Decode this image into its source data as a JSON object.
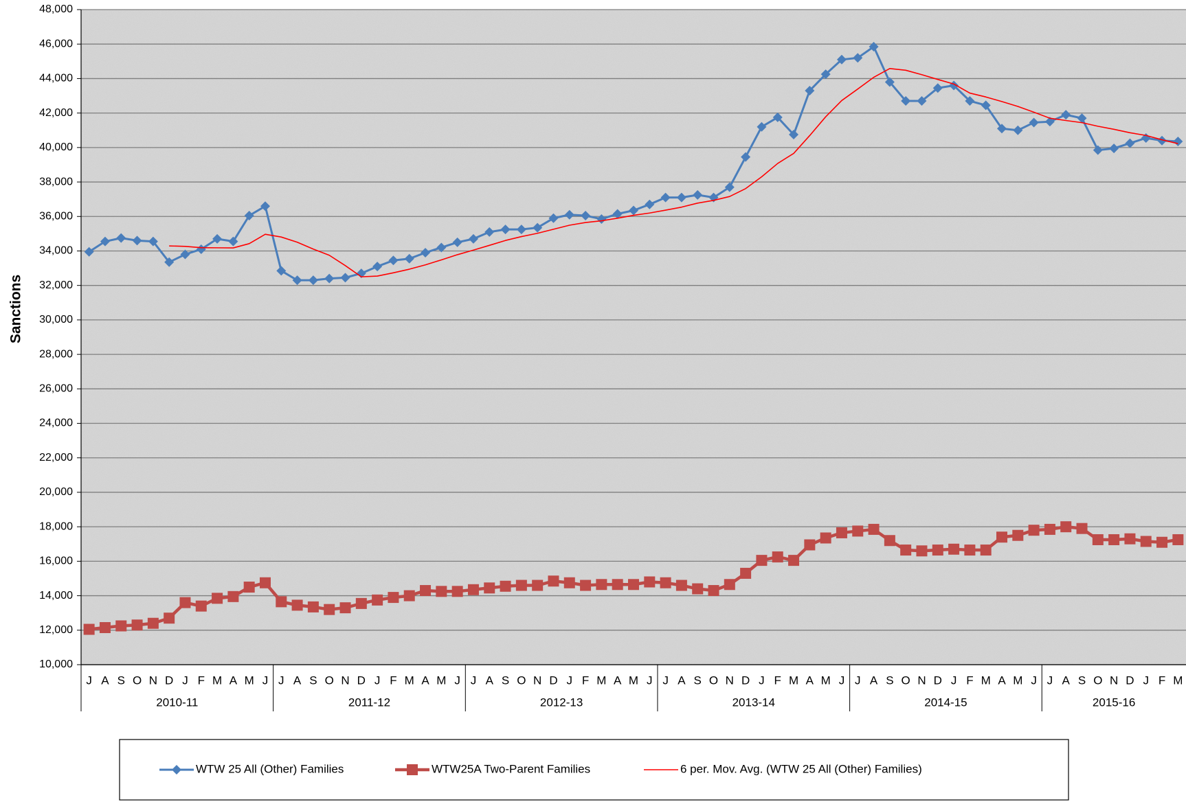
{
  "chart_data": {
    "type": "line",
    "y_label": "Sanctions",
    "categories": [
      "J",
      "A",
      "S",
      "O",
      "N",
      "D",
      "J",
      "F",
      "M",
      "A",
      "M",
      "J",
      "J",
      "A",
      "S",
      "O",
      "N",
      "D",
      "J",
      "F",
      "M",
      "A",
      "M",
      "J",
      "J",
      "A",
      "S",
      "O",
      "N",
      "D",
      "J",
      "F",
      "M",
      "A",
      "M",
      "J",
      "J",
      "A",
      "S",
      "O",
      "N",
      "D",
      "J",
      "F",
      "M",
      "A",
      "M",
      "J",
      "J",
      "A",
      "S",
      "O",
      "N",
      "D",
      "J",
      "F",
      "M",
      "A",
      "M",
      "J",
      "J",
      "A",
      "S",
      "O",
      "N",
      "D",
      "J",
      "F",
      "M"
    ],
    "groups": [
      "2010-11",
      "2011-12",
      "2012-13",
      "2013-14",
      "2014-15",
      "2015-16"
    ],
    "series": [
      {
        "name": "WTW 25 All (Other) Families",
        "color": "#4a7ebb",
        "marker": "diamond",
        "values": [
          33950,
          34550,
          34750,
          34600,
          34550,
          33350,
          33800,
          34100,
          34700,
          34550,
          36050,
          36600,
          32850,
          32300,
          32300,
          32400,
          32450,
          32700,
          33100,
          33450,
          33550,
          33900,
          34200,
          34500,
          34700,
          35100,
          35250,
          35250,
          35350,
          35900,
          36100,
          36050,
          35850,
          36150,
          36350,
          36700,
          37100,
          37100,
          37250,
          37100,
          37700,
          39450,
          41200,
          41750,
          40750,
          43300,
          44250,
          45100,
          45200,
          45850,
          43800,
          42700,
          42700,
          43450,
          43600,
          42700,
          42450,
          41100,
          41000,
          41450,
          41500,
          41900,
          41700,
          39850,
          39950,
          40250,
          40550,
          40400,
          40350
        ]
      },
      {
        "name": "WTW25A Two-Parent Families",
        "color": "#be4b48",
        "marker": "square",
        "values": [
          12050,
          12150,
          12250,
          12300,
          12400,
          12700,
          13600,
          13400,
          13850,
          13950,
          14500,
          14750,
          13650,
          13450,
          13350,
          13200,
          13300,
          13550,
          13750,
          13900,
          14000,
          14300,
          14250,
          14250,
          14350,
          14450,
          14550,
          14600,
          14600,
          14850,
          14750,
          14600,
          14650,
          14650,
          14650,
          14800,
          14750,
          14600,
          14400,
          14300,
          14650,
          15300,
          16050,
          16250,
          16050,
          16950,
          17350,
          17650,
          17750,
          17850,
          17200,
          16650,
          16600,
          16650,
          16700,
          16650,
          16650,
          17400,
          17500,
          17800,
          17850,
          18000,
          17900,
          17250,
          17250,
          17300,
          17150,
          17100,
          17250
        ]
      },
      {
        "name": "6 per. Mov. Avg. (WTW 25 All (Other) Families)",
        "color": "#ff0000",
        "marker": "none",
        "values": [
          null,
          null,
          null,
          null,
          null,
          34292,
          34267,
          34192,
          34183,
          34175,
          34425,
          34967,
          34808,
          34508,
          34108,
          33750,
          33150,
          32500,
          32542,
          32733,
          32942,
          33192,
          33483,
          33783,
          34050,
          34325,
          34608,
          34833,
          35025,
          35258,
          35492,
          35650,
          35750,
          35900,
          36067,
          36200,
          36367,
          36542,
          36775,
          36933,
          37158,
          37617,
          38300,
          39075,
          39658,
          40692,
          41783,
          42725,
          43392,
          44075,
          44583,
          44483,
          44225,
          43950,
          43683,
          43158,
          42933,
          42667,
          42383,
          42050,
          41700,
          41567,
          41442,
          41233,
          41058,
          40858,
          40700,
          40450,
          40225
        ]
      }
    ],
    "ylim": [
      10000,
      48000
    ],
    "yticks": [
      {
        "value": 10000,
        "label": "10,000"
      },
      {
        "value": 12000,
        "label": "12,000"
      },
      {
        "value": 14000,
        "label": "14,000"
      },
      {
        "value": 16000,
        "label": "16,000"
      },
      {
        "value": 18000,
        "label": "18,000"
      },
      {
        "value": 20000,
        "label": "20,000"
      },
      {
        "value": 22000,
        "label": "22,000"
      },
      {
        "value": 24000,
        "label": "24,000"
      },
      {
        "value": 26000,
        "label": "26,000"
      },
      {
        "value": 28000,
        "label": "28,000"
      },
      {
        "value": 30000,
        "label": "30,000"
      },
      {
        "value": 32000,
        "label": "32,000"
      },
      {
        "value": 34000,
        "label": "34,000"
      },
      {
        "value": 36000,
        "label": "36,000"
      },
      {
        "value": 38000,
        "label": "38,000"
      },
      {
        "value": 40000,
        "label": "40,000"
      },
      {
        "value": 42000,
        "label": "42,000"
      },
      {
        "value": 44000,
        "label": "44,000"
      },
      {
        "value": 46000,
        "label": "46,000"
      },
      {
        "value": 48000,
        "label": "48,000"
      }
    ],
    "grid": true,
    "legend": "bottom"
  }
}
